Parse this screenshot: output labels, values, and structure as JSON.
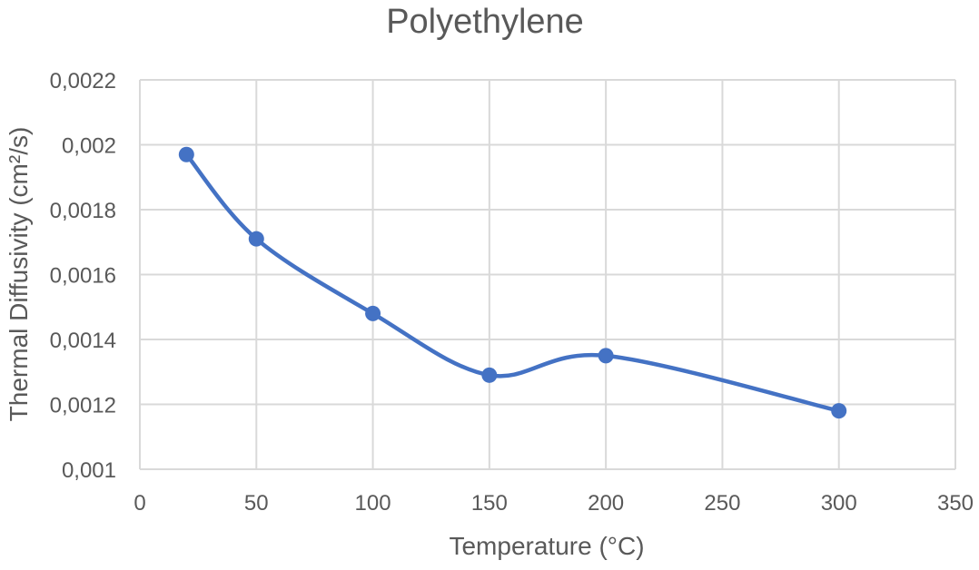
{
  "chart_data": {
    "type": "scatter",
    "title": "Polyethylene",
    "xlabel": "Temperature (°C)",
    "ylabel": "Thermal Diffusivity (cm²/s)",
    "xlim": [
      0,
      350
    ],
    "ylim": [
      0.001,
      0.0022
    ],
    "x_ticks": [
      0,
      50,
      100,
      150,
      200,
      250,
      300,
      350
    ],
    "x_tick_labels": [
      "0",
      "50",
      "100",
      "150",
      "200",
      "250",
      "300",
      "350"
    ],
    "y_ticks": [
      0.001,
      0.0012,
      0.0014,
      0.0016,
      0.0018,
      0.002,
      0.0022
    ],
    "y_tick_labels": [
      "0,001",
      "0,0012",
      "0,0014",
      "0,0016",
      "0,0018",
      "0,002",
      "0,0022"
    ],
    "grid": true,
    "legend": "none",
    "series": [
      {
        "name": "Polyethylene",
        "color": "#4472c4",
        "smoothed": true,
        "markers": true,
        "x": [
          20,
          50,
          100,
          150,
          200,
          300
        ],
        "y": [
          0.00197,
          0.00171,
          0.00148,
          0.00129,
          0.00135,
          0.00118
        ]
      }
    ]
  }
}
